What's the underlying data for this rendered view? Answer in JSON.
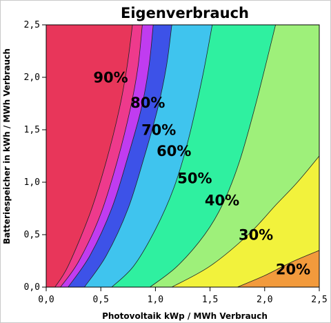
{
  "chart_data": {
    "type": "contour",
    "title": "Eigenverbrauch",
    "xlabel": "Photovoltaik kWp / MWh Verbrauch",
    "ylabel": "Batteriespeicher in kWh / MWh Verbrauch",
    "xlim": [
      0,
      2.5
    ],
    "ylim": [
      0,
      2.5
    ],
    "x_ticks": [
      "0,0",
      "0,5",
      "1,0",
      "1,5",
      "2,0",
      "2,5"
    ],
    "y_ticks": [
      "0,0",
      "0,5",
      "1,0",
      "1,5",
      "2,0",
      "2,5"
    ],
    "x_tick_values": [
      0,
      0.5,
      1.0,
      1.5,
      2.0,
      2.5
    ],
    "y_tick_values": [
      0,
      0.5,
      1.0,
      1.5,
      2.0,
      2.5
    ],
    "background_color": "#e8365a",
    "regions": [
      {
        "label": "90%",
        "color": "#ee3a8c",
        "boundary": [
          [
            0.08,
            0
          ],
          [
            0.2,
            0.2
          ],
          [
            0.4,
            0.7
          ],
          [
            0.55,
            1.2
          ],
          [
            0.67,
            1.7
          ],
          [
            0.74,
            2.1
          ],
          [
            0.79,
            2.5
          ]
        ],
        "label_at": [
          0.59,
          1.99
        ]
      },
      {
        "label": "80%",
        "color": "#c03cf0",
        "boundary": [
          [
            0.13,
            0
          ],
          [
            0.3,
            0.25
          ],
          [
            0.5,
            0.7
          ],
          [
            0.65,
            1.2
          ],
          [
            0.77,
            1.7
          ],
          [
            0.84,
            2.1
          ],
          [
            0.88,
            2.5
          ]
        ],
        "label_at": [
          0.93,
          1.75
        ]
      },
      {
        "label": "70%",
        "color": "#3d52e8",
        "boundary": [
          [
            0.2,
            0
          ],
          [
            0.4,
            0.3
          ],
          [
            0.6,
            0.75
          ],
          [
            0.75,
            1.25
          ],
          [
            0.87,
            1.7
          ],
          [
            0.94,
            2.1
          ],
          [
            0.98,
            2.5
          ]
        ],
        "label_at": [
          1.03,
          1.49
        ]
      },
      {
        "label": "60%",
        "color": "#3fc4ee",
        "boundary": [
          [
            0.35,
            0
          ],
          [
            0.55,
            0.3
          ],
          [
            0.75,
            0.75
          ],
          [
            0.9,
            1.25
          ],
          [
            1.02,
            1.7
          ],
          [
            1.1,
            2.1
          ],
          [
            1.15,
            2.5
          ]
        ],
        "label_at": [
          1.17,
          1.29
        ]
      },
      {
        "label": "50%",
        "color": "#2ff0a0",
        "boundary": [
          [
            0.6,
            0
          ],
          [
            0.8,
            0.2
          ],
          [
            1.0,
            0.55
          ],
          [
            1.17,
            0.95
          ],
          [
            1.3,
            1.4
          ],
          [
            1.43,
            2.0
          ],
          [
            1.52,
            2.5
          ]
        ],
        "label_at": [
          1.36,
          1.03
        ]
      },
      {
        "label": "40%",
        "color": "#9ef07a",
        "boundary": [
          [
            0.95,
            0
          ],
          [
            1.2,
            0.2
          ],
          [
            1.45,
            0.5
          ],
          [
            1.62,
            0.8
          ],
          [
            1.77,
            1.2
          ],
          [
            1.92,
            1.75
          ],
          [
            2.1,
            2.5
          ]
        ],
        "label_at": [
          1.61,
          0.82
        ]
      },
      {
        "label": "30%",
        "color": "#f2f23c",
        "boundary": [
          [
            1.15,
            0
          ],
          [
            1.5,
            0.2
          ],
          [
            1.85,
            0.5
          ],
          [
            2.1,
            0.78
          ],
          [
            2.3,
            1.0
          ],
          [
            2.5,
            1.25
          ]
        ],
        "label_at": [
          1.92,
          0.49
        ]
      },
      {
        "label": "20%",
        "color": "#f29a3c",
        "boundary": [
          [
            1.75,
            0
          ],
          [
            2.0,
            0.11
          ],
          [
            2.25,
            0.24
          ],
          [
            2.5,
            0.35
          ]
        ],
        "label_at": [
          2.26,
          0.16
        ]
      }
    ]
  }
}
